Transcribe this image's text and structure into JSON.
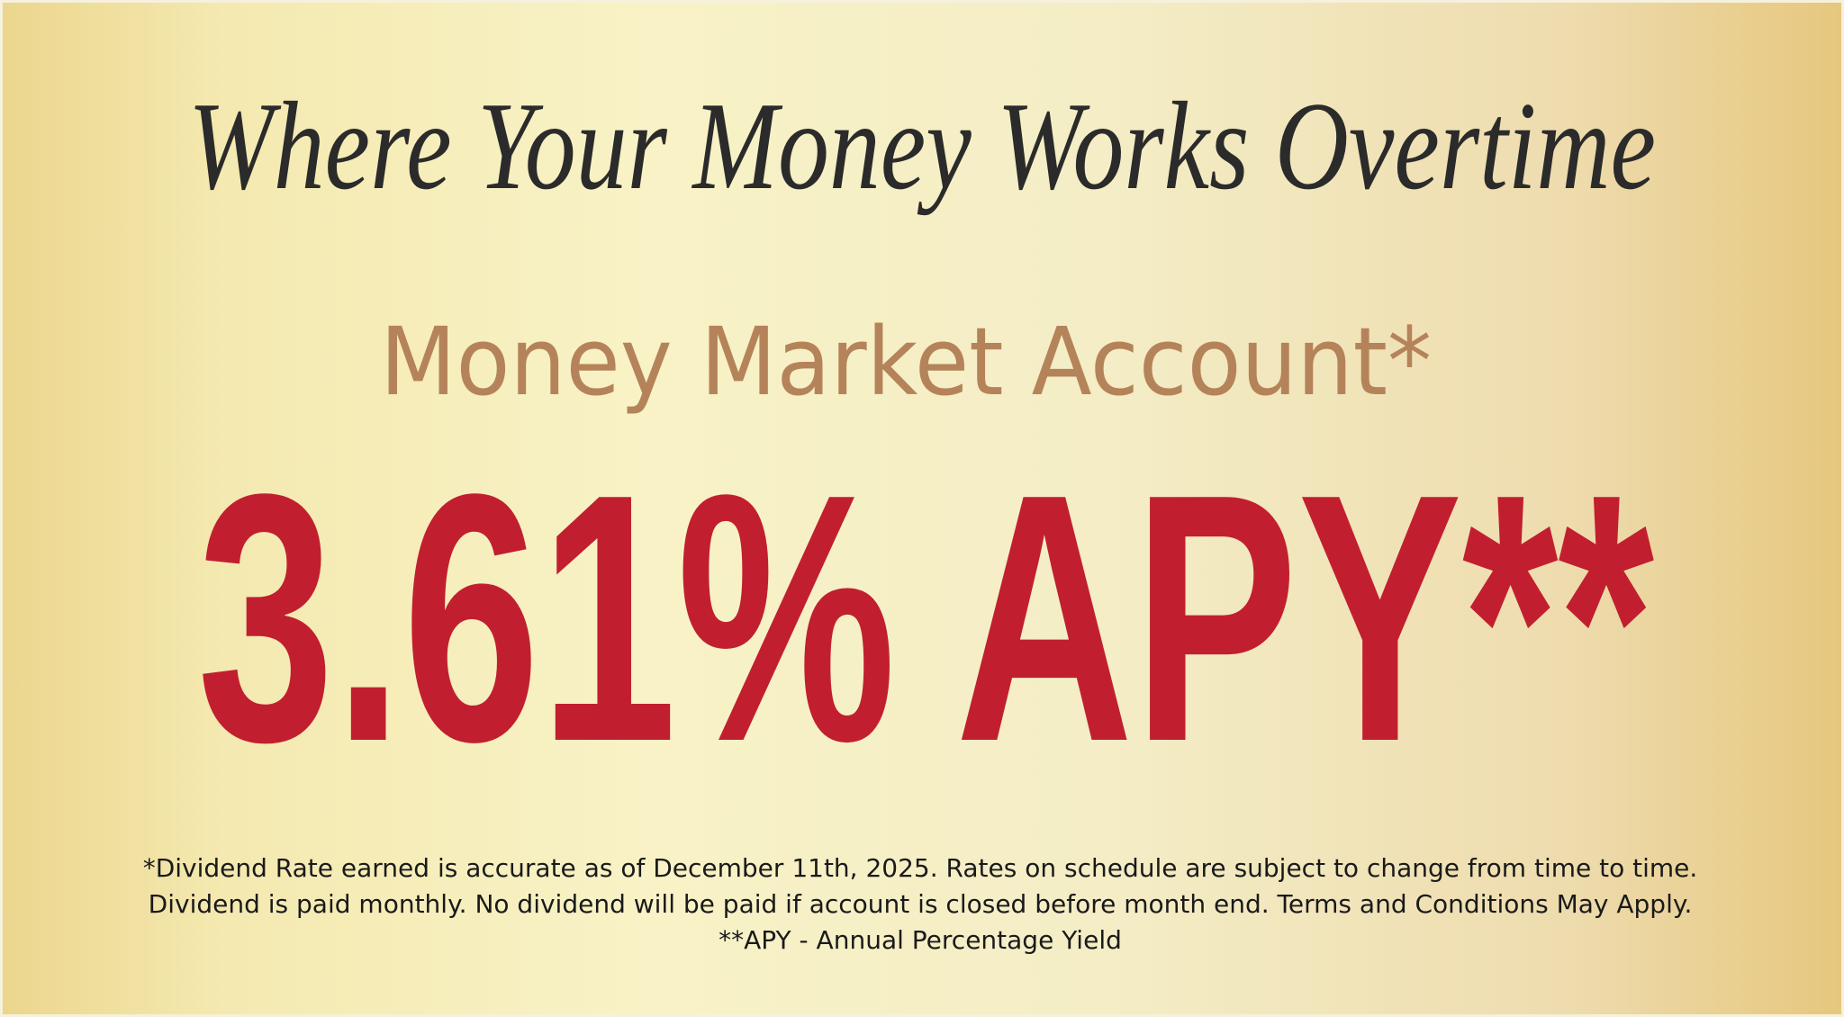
{
  "headline": "Where Your Money Works Overtime",
  "product": "Money Market Account*",
  "rate": "3.61% APY**",
  "disclaimer": [
    "*Dividend Rate earned is accurate as of December 11th, 2025. Rates on schedule are subject to change from time to time.",
    "Dividend is paid monthly. No dividend will be paid if account is closed before month end. Terms and Conditions May Apply.",
    "**APY - Annual Percentage Yield"
  ]
}
